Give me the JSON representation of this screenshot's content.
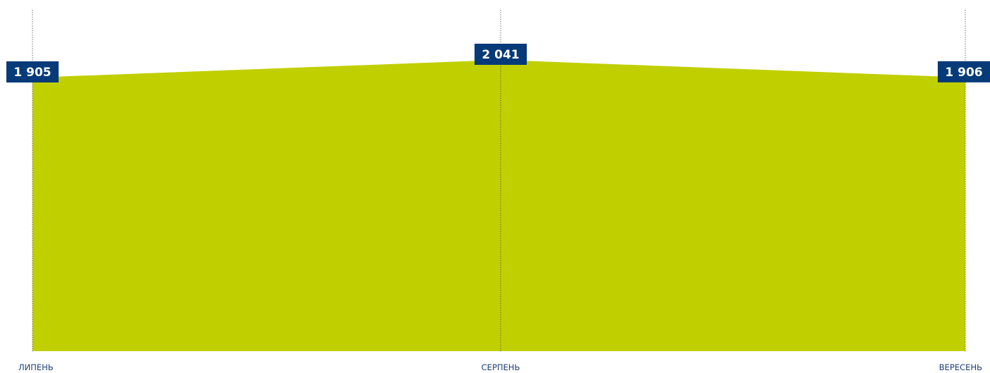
{
  "chart_data": {
    "type": "area",
    "categories": [
      "ЛИПЕНЬ",
      "СЕРПЕНЬ",
      "ВЕРЕСЕНЬ"
    ],
    "values": [
      1905,
      2041,
      1906
    ],
    "value_labels": [
      "1 905",
      "2 041",
      "1 906"
    ],
    "title": "",
    "xlabel": "",
    "ylabel": "",
    "ylim": [
      0,
      2300
    ],
    "grid": false,
    "legend": "none",
    "colors": {
      "area": "#c0cf00",
      "label_bg": "#063a78",
      "label_text": "#ffffff",
      "tick_text": "#1f3f7a",
      "guide_line": "#555555"
    }
  }
}
